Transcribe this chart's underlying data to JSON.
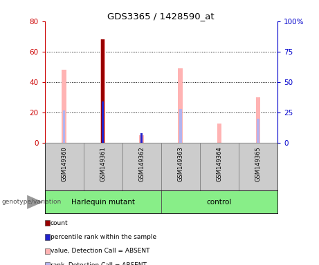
{
  "title": "GDS3365 / 1428590_at",
  "samples": [
    "GSM149360",
    "GSM149361",
    "GSM149362",
    "GSM149363",
    "GSM149364",
    "GSM149365"
  ],
  "left_yticks": [
    0,
    20,
    40,
    60,
    80
  ],
  "right_yticks": [
    0,
    25,
    50,
    75,
    100
  ],
  "right_yticklabels": [
    "0",
    "25",
    "50",
    "75",
    "100%"
  ],
  "pink_bars": [
    48,
    68,
    5,
    49,
    13,
    30
  ],
  "light_blue_bars": [
    27,
    33,
    0,
    28,
    0,
    20
  ],
  "red_bars": [
    0,
    68,
    0,
    0,
    0,
    0
  ],
  "blue_bars": [
    0,
    34,
    8,
    0,
    0,
    0
  ],
  "colors": {
    "pink": "#ffb3b3",
    "light_blue": "#b3b3ee",
    "red": "#990000",
    "blue": "#2222cc",
    "left_axis": "#cc0000",
    "right_axis": "#0000cc",
    "group_green": "#88ee88",
    "sample_bg": "#cccccc",
    "genotype_arrow": "#999999"
  },
  "groups": [
    {
      "label": "Harlequin mutant",
      "start": 0,
      "end": 2
    },
    {
      "label": "control",
      "start": 3,
      "end": 5
    }
  ],
  "legend_items": [
    {
      "color": "#990000",
      "label": "count"
    },
    {
      "color": "#2222cc",
      "label": "percentile rank within the sample"
    },
    {
      "color": "#ffb3b3",
      "label": "value, Detection Call = ABSENT"
    },
    {
      "color": "#b3b3ee",
      "label": "rank, Detection Call = ABSENT"
    }
  ],
  "genotype_label": "genotype/variation",
  "pink_bar_width": 0.12,
  "light_blue_bar_width": 0.06,
  "red_bar_width": 0.08,
  "blue_bar_width": 0.06
}
